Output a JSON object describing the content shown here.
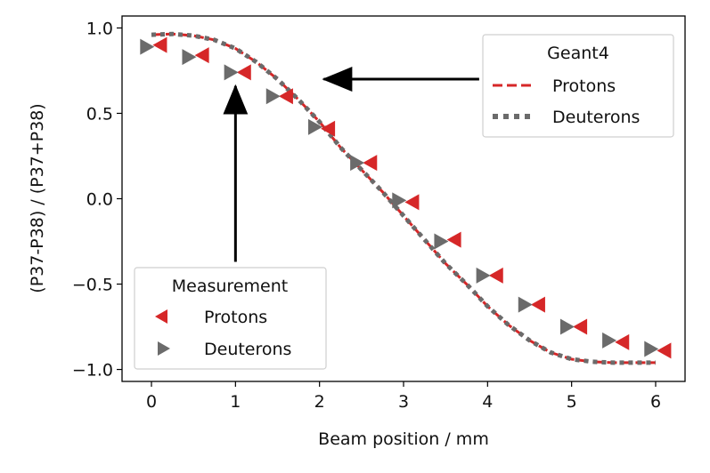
{
  "chart_data": {
    "type": "line",
    "xlabel": "Beam position / mm",
    "ylabel": "(P37-P38) / (P37+P38)",
    "xlim": [
      -0.35,
      6.35
    ],
    "ylim": [
      -1.07,
      1.07
    ],
    "xticks": [
      0,
      1,
      2,
      3,
      4,
      5,
      6
    ],
    "xtick_labels": [
      "0",
      "1",
      "2",
      "3",
      "4",
      "5",
      "6"
    ],
    "yticks": [
      1.0,
      0.5,
      0.0,
      -0.5,
      -1.0
    ],
    "ytick_labels": [
      "1.0",
      "0.5",
      "0.0",
      "−0.5",
      "−1.0"
    ],
    "legends": {
      "geant4": {
        "title": "Geant4",
        "location": "top-right",
        "entries": [
          {
            "label": "Protons",
            "style": "dashed",
            "color": "#d62728"
          },
          {
            "label": "Deuterons",
            "style": "dotted",
            "color": "#6b6b6b"
          }
        ]
      },
      "measurement": {
        "title": "Measurement",
        "location": "bottom-left",
        "entries": [
          {
            "label": "Protons",
            "marker": "left-triangle",
            "color": "#d62728"
          },
          {
            "label": "Deuterons",
            "marker": "right-triangle",
            "color": "#6b6b6b"
          }
        ]
      }
    },
    "series": [
      {
        "name": "Geant4 Protons",
        "kind": "line",
        "style": "dashed",
        "color": "#d62728",
        "x": [
          0.0,
          0.25,
          0.5,
          0.75,
          1.0,
          1.25,
          1.5,
          1.75,
          2.0,
          2.25,
          2.5,
          2.75,
          3.0,
          3.25,
          3.5,
          3.75,
          4.0,
          4.25,
          4.5,
          4.75,
          5.0,
          5.25,
          5.5,
          5.75,
          6.0
        ],
        "y": [
          0.96,
          0.965,
          0.955,
          0.93,
          0.88,
          0.8,
          0.7,
          0.58,
          0.45,
          0.3,
          0.17,
          0.04,
          -0.1,
          -0.24,
          -0.38,
          -0.5,
          -0.63,
          -0.74,
          -0.83,
          -0.9,
          -0.94,
          -0.955,
          -0.96,
          -0.96,
          -0.96
        ]
      },
      {
        "name": "Geant4 Deuterons",
        "kind": "line",
        "style": "dotted",
        "color": "#6b6b6b",
        "x": [
          0.0,
          0.25,
          0.5,
          0.75,
          1.0,
          1.25,
          1.5,
          1.75,
          2.0,
          2.25,
          2.5,
          2.75,
          3.0,
          3.25,
          3.5,
          3.75,
          4.0,
          4.25,
          4.5,
          4.75,
          5.0,
          5.25,
          5.5,
          5.75,
          6.0
        ],
        "y": [
          0.96,
          0.965,
          0.955,
          0.93,
          0.88,
          0.8,
          0.7,
          0.58,
          0.45,
          0.3,
          0.17,
          0.04,
          -0.1,
          -0.24,
          -0.38,
          -0.5,
          -0.63,
          -0.74,
          -0.83,
          -0.9,
          -0.94,
          -0.955,
          -0.96,
          -0.96,
          -0.96
        ]
      },
      {
        "name": "Measurement Protons",
        "kind": "marker",
        "marker": "left-triangle",
        "color": "#d62728",
        "x": [
          0.1,
          0.6,
          1.1,
          1.6,
          2.1,
          2.6,
          3.1,
          3.6,
          4.1,
          4.6,
          5.1,
          5.6,
          6.1
        ],
        "y": [
          0.9,
          0.84,
          0.74,
          0.6,
          0.41,
          0.21,
          -0.02,
          -0.24,
          -0.45,
          -0.62,
          -0.75,
          -0.84,
          -0.89
        ]
      },
      {
        "name": "Measurement Deuterons",
        "kind": "marker",
        "marker": "right-triangle",
        "color": "#6b6b6b",
        "x": [
          -0.05,
          0.45,
          0.95,
          1.45,
          1.95,
          2.45,
          2.95,
          3.45,
          3.95,
          4.45,
          4.95,
          5.45,
          5.95
        ],
        "y": [
          0.89,
          0.83,
          0.74,
          0.6,
          0.42,
          0.21,
          -0.01,
          -0.25,
          -0.45,
          -0.62,
          -0.75,
          -0.83,
          -0.88
        ]
      }
    ],
    "annotations": [
      {
        "type": "arrow",
        "from": [
          1.0,
          -0.37
        ],
        "to": [
          1.0,
          0.66
        ],
        "color": "#000000"
      },
      {
        "type": "arrow",
        "from": [
          3.9,
          0.7
        ],
        "to": [
          2.05,
          0.7
        ],
        "color": "#000000"
      }
    ]
  }
}
